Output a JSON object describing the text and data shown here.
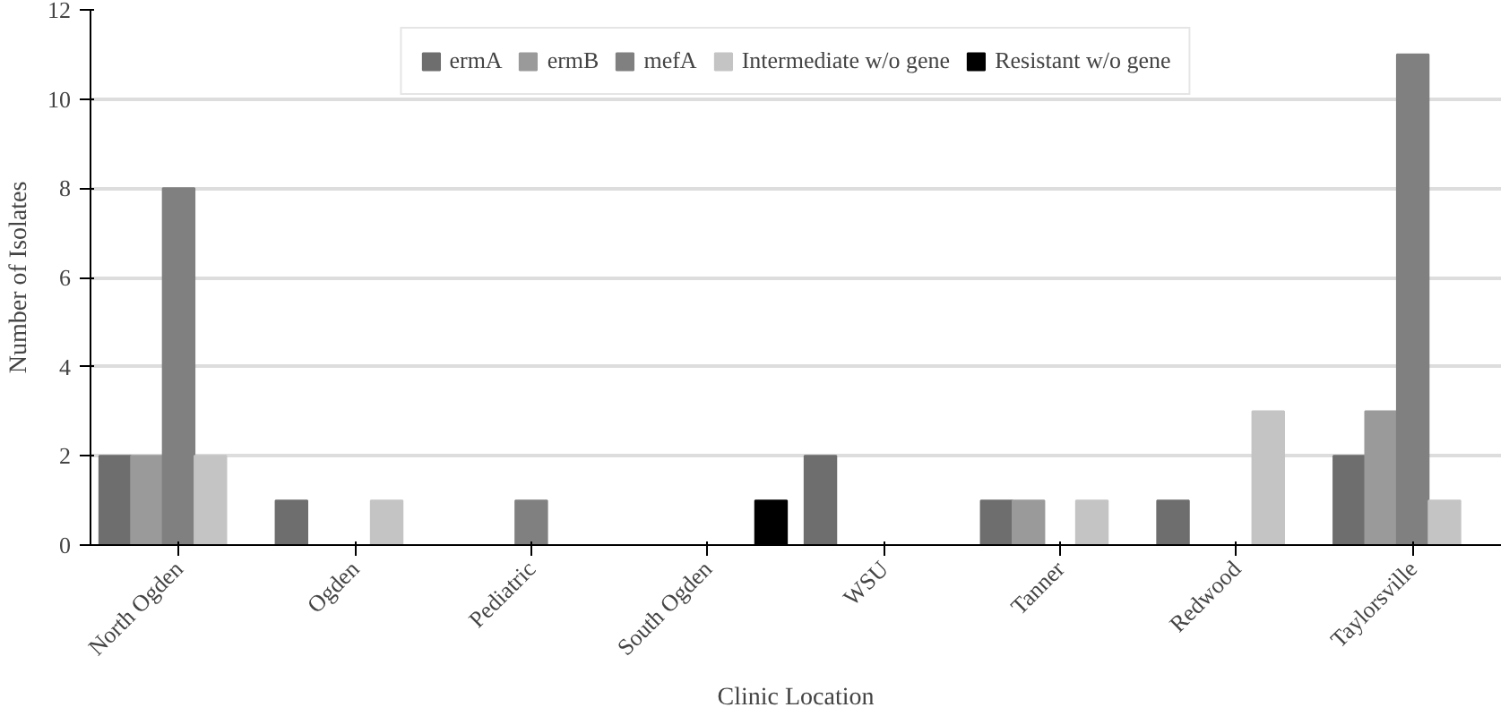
{
  "chart_data": {
    "type": "bar",
    "xlabel": "Clinic Location",
    "ylabel": "Number of Isolates",
    "categories": [
      "North Ogden",
      "Ogden",
      "Pediatric",
      "South Ogden",
      "WSU",
      "Tanner",
      "Redwood",
      "Taylorsville"
    ],
    "series": [
      {
        "name": "ermA",
        "color": "#6e6e6e",
        "values": [
          2,
          1,
          0,
          0,
          2,
          1,
          1,
          2
        ]
      },
      {
        "name": "ermB",
        "color": "#9a9a9a",
        "values": [
          2,
          0,
          0,
          0,
          0,
          1,
          0,
          3
        ]
      },
      {
        "name": "mefA",
        "color": "#808080",
        "values": [
          8,
          0,
          1,
          0,
          0,
          0,
          0,
          11
        ]
      },
      {
        "name": "Intermediate w/o gene",
        "color": "#c4c4c4",
        "values": [
          2,
          1,
          0,
          0,
          0,
          1,
          3,
          1
        ]
      },
      {
        "name": "Resistant w/o gene",
        "color": "#000000",
        "values": [
          0,
          0,
          0,
          1,
          0,
          0,
          0,
          0
        ]
      }
    ],
    "ylim": [
      0,
      12
    ],
    "yticks": [
      0,
      2,
      4,
      6,
      8,
      10,
      12
    ],
    "grid": "y",
    "legend": "top"
  }
}
